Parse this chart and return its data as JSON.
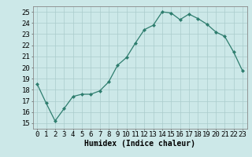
{
  "x": [
    0,
    1,
    2,
    3,
    4,
    5,
    6,
    7,
    8,
    9,
    10,
    11,
    12,
    13,
    14,
    15,
    16,
    17,
    18,
    19,
    20,
    21,
    22,
    23
  ],
  "y": [
    18.5,
    16.8,
    15.2,
    16.3,
    17.4,
    17.6,
    17.6,
    17.9,
    18.7,
    20.2,
    20.9,
    22.2,
    23.4,
    23.8,
    25.0,
    24.9,
    24.3,
    24.8,
    24.4,
    23.9,
    23.2,
    22.8,
    21.4,
    19.7
  ],
  "xlabel": "Humidex (Indice chaleur)",
  "xlim": [
    -0.5,
    23.5
  ],
  "ylim": [
    14.5,
    25.5
  ],
  "yticks": [
    15,
    16,
    17,
    18,
    19,
    20,
    21,
    22,
    23,
    24,
    25
  ],
  "xticks": [
    0,
    1,
    2,
    3,
    4,
    5,
    6,
    7,
    8,
    9,
    10,
    11,
    12,
    13,
    14,
    15,
    16,
    17,
    18,
    19,
    20,
    21,
    22,
    23
  ],
  "line_color": "#2e7d6e",
  "marker": "D",
  "marker_size": 2.0,
  "bg_color": "#cce8e8",
  "grid_color": "#aacccc",
  "label_fontsize": 7,
  "tick_fontsize": 6.5
}
